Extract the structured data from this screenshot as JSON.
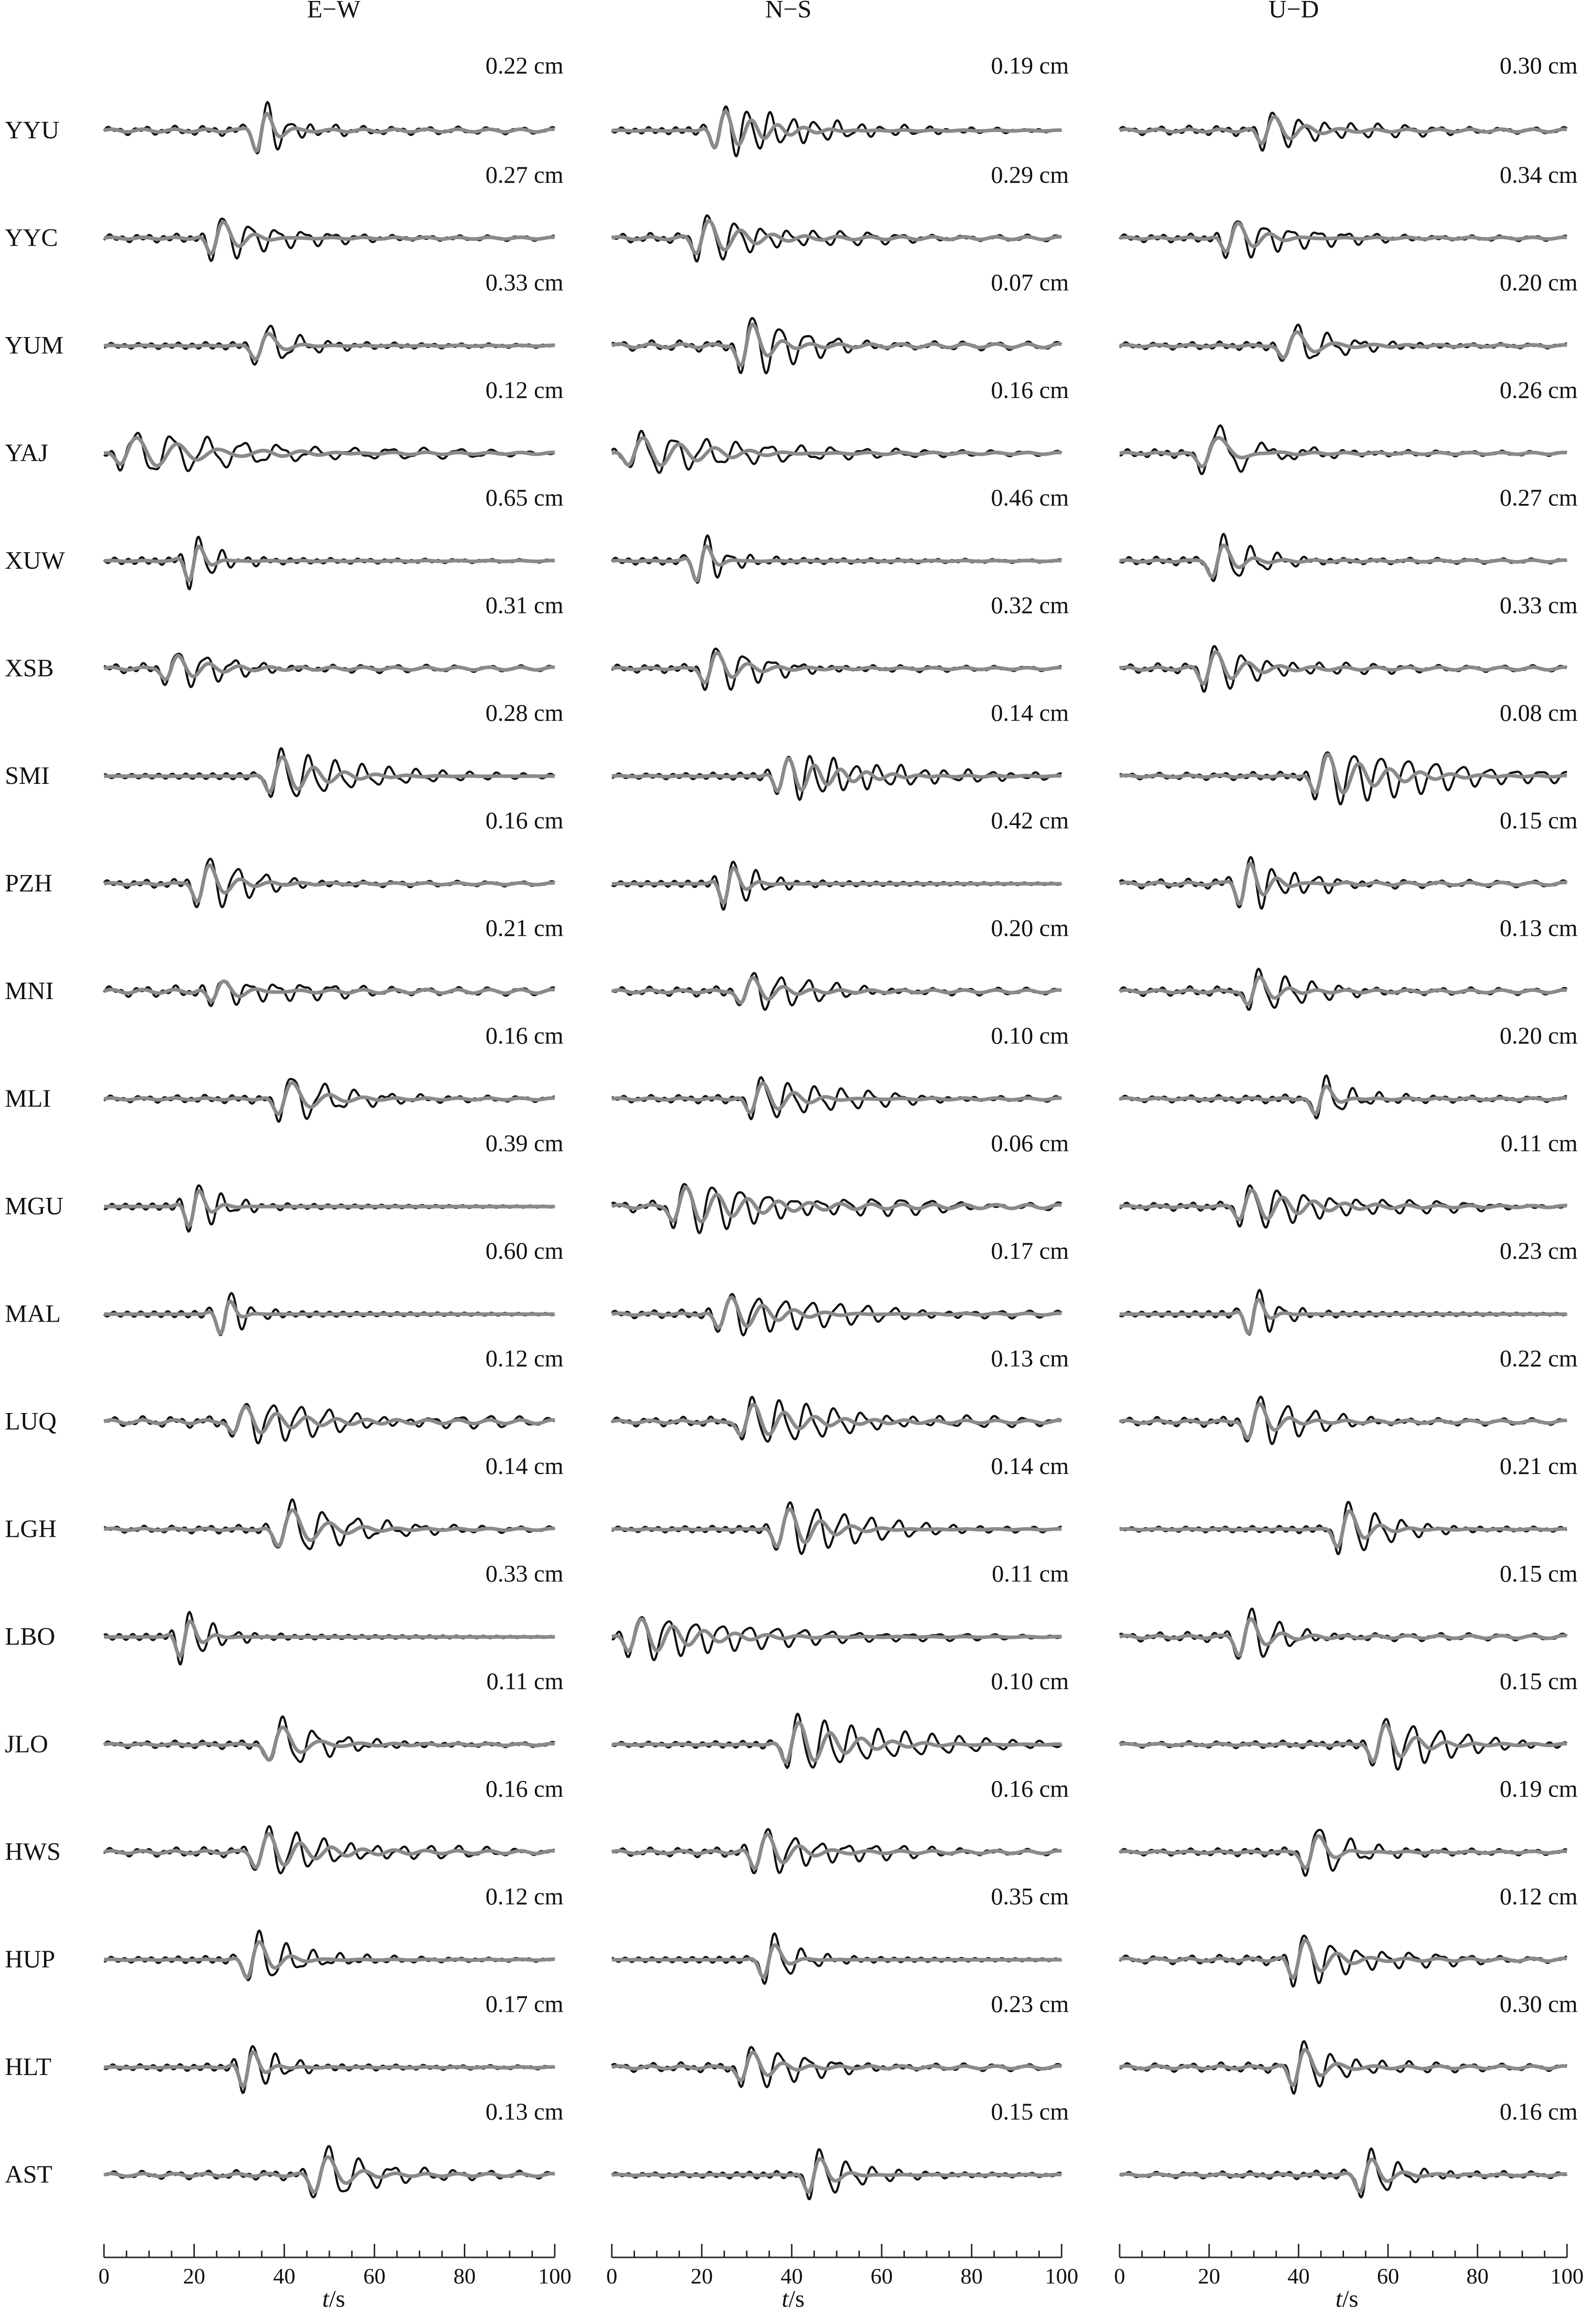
{
  "chart_data": {
    "type": "line",
    "components": [
      "E−W",
      "N−S",
      "U−D"
    ],
    "stations": [
      "YYU",
      "YYC",
      "YUM",
      "YAJ",
      "XUW",
      "XSB",
      "SMI",
      "PZH",
      "MNI",
      "MLI",
      "MGU",
      "MAL",
      "LUQ",
      "LGH",
      "LBO",
      "JLO",
      "HWS",
      "HUP",
      "HLT",
      "AST"
    ],
    "amplitudes": [
      [
        "0.22 cm",
        "0.19 cm",
        "0.30 cm"
      ],
      [
        "0.27 cm",
        "0.29 cm",
        "0.34 cm"
      ],
      [
        "0.33 cm",
        "0.07 cm",
        "0.20 cm"
      ],
      [
        "0.12 cm",
        "0.16 cm",
        "0.26 cm"
      ],
      [
        "0.65 cm",
        "0.46 cm",
        "0.27 cm"
      ],
      [
        "0.31 cm",
        "0.32 cm",
        "0.33 cm"
      ],
      [
        "0.28 cm",
        "0.14 cm",
        "0.08 cm"
      ],
      [
        "0.16 cm",
        "0.42 cm",
        "0.15 cm"
      ],
      [
        "0.21 cm",
        "0.20 cm",
        "0.13 cm"
      ],
      [
        "0.16 cm",
        "0.10 cm",
        "0.20 cm"
      ],
      [
        "0.39 cm",
        "0.06 cm",
        "0.11 cm"
      ],
      [
        "0.60 cm",
        "0.17 cm",
        "0.23 cm"
      ],
      [
        "0.12 cm",
        "0.13 cm",
        "0.22 cm"
      ],
      [
        "0.14 cm",
        "0.14 cm",
        "0.21 cm"
      ],
      [
        "0.33 cm",
        "0.11 cm",
        "0.15 cm"
      ],
      [
        "0.11 cm",
        "0.10 cm",
        "0.15 cm"
      ],
      [
        "0.16 cm",
        "0.16 cm",
        "0.19 cm"
      ],
      [
        "0.12 cm",
        "0.35 cm",
        "0.12 cm"
      ],
      [
        "0.17 cm",
        "0.23 cm",
        "0.30 cm"
      ],
      [
        "0.13 cm",
        "0.15 cm",
        "0.16 cm"
      ]
    ],
    "xlabel_italic": "t",
    "xlabel_unit": "/s",
    "xlim": [
      0,
      100
    ],
    "xticks": [
      0,
      20,
      40,
      60,
      80,
      100
    ],
    "series": [
      {
        "color": "#111111"
      },
      {
        "color": "#8a8a8a"
      }
    ],
    "waveforms": {
      "E−W": [
        {
          "t0": 35,
          "decay": 6,
          "period": 5,
          "amp": 1.0,
          "pre": 0.15
        },
        {
          "t0": 25,
          "decay": 12,
          "period": 6,
          "amp": 0.9,
          "pre": 0.1
        },
        {
          "t0": 35,
          "decay": 7,
          "period": 7,
          "amp": 0.8,
          "pre": 0.05
        },
        {
          "t0": 5,
          "decay": 35,
          "period": 8,
          "amp": 0.7,
          "pre": 0.1
        },
        {
          "t0": 20,
          "decay": 5,
          "period": 5,
          "amp": 1.0,
          "pre": 0.05
        },
        {
          "t0": 15,
          "decay": 14,
          "period": 6,
          "amp": 0.6,
          "pre": 0.15
        },
        {
          "t0": 38,
          "decay": 20,
          "period": 6,
          "amp": 0.9,
          "pre": 0.0
        },
        {
          "t0": 22,
          "decay": 10,
          "period": 6,
          "amp": 1.0,
          "pre": 0.1
        },
        {
          "t0": 25,
          "decay": 14,
          "period": 6,
          "amp": 0.6,
          "pre": 0.2
        },
        {
          "t0": 40,
          "decay": 12,
          "period": 7,
          "amp": 0.9,
          "pre": 0.1
        },
        {
          "t0": 20,
          "decay": 6,
          "period": 5,
          "amp": 1.0,
          "pre": 0.0
        },
        {
          "t0": 27,
          "decay": 4,
          "period": 5,
          "amp": 1.0,
          "pre": 0.0
        },
        {
          "t0": 30,
          "decay": 25,
          "period": 6,
          "amp": 0.7,
          "pre": 0.2
        },
        {
          "t0": 40,
          "decay": 15,
          "period": 7,
          "amp": 1.0,
          "pre": 0.1
        },
        {
          "t0": 18,
          "decay": 6,
          "period": 5,
          "amp": 1.0,
          "pre": 0.0
        },
        {
          "t0": 38,
          "decay": 12,
          "period": 7,
          "amp": 1.0,
          "pre": 0.1
        },
        {
          "t0": 35,
          "decay": 20,
          "period": 6,
          "amp": 0.8,
          "pre": 0.15
        },
        {
          "t0": 33,
          "decay": 10,
          "period": 6,
          "amp": 1.0,
          "pre": 0.05
        },
        {
          "t0": 32,
          "decay": 6,
          "period": 5,
          "amp": 1.0,
          "pre": 0.05
        },
        {
          "t0": 48,
          "decay": 10,
          "period": 7,
          "amp": 1.0,
          "pre": 0.15
        }
      ],
      "N−S": [
        {
          "t0": 24,
          "decay": 20,
          "period": 5,
          "amp": 0.9,
          "pre": 0.05
        },
        {
          "t0": 20,
          "decay": 18,
          "period": 6,
          "amp": 0.8,
          "pre": 0.15
        },
        {
          "t0": 30,
          "decay": 10,
          "period": 6,
          "amp": 1.2,
          "pre": 0.2
        },
        {
          "t0": 5,
          "decay": 30,
          "period": 7,
          "amp": 0.7,
          "pre": 0.1
        },
        {
          "t0": 20,
          "decay": 5,
          "period": 5,
          "amp": 1.0,
          "pre": 0.05
        },
        {
          "t0": 22,
          "decay": 12,
          "period": 6,
          "amp": 0.8,
          "pre": 0.1
        },
        {
          "t0": 38,
          "decay": 25,
          "period": 5,
          "amp": 0.8,
          "pre": 0.05
        },
        {
          "t0": 26,
          "decay": 6,
          "period": 5,
          "amp": 1.0,
          "pre": 0.0
        },
        {
          "t0": 30,
          "decay": 14,
          "period": 6,
          "amp": 0.7,
          "pre": 0.15
        },
        {
          "t0": 32,
          "decay": 18,
          "period": 6,
          "amp": 0.8,
          "pre": 0.1
        },
        {
          "t0": 15,
          "decay": 30,
          "period": 6,
          "amp": 0.8,
          "pre": 0.2
        },
        {
          "t0": 25,
          "decay": 25,
          "period": 6,
          "amp": 0.8,
          "pre": 0.1
        },
        {
          "t0": 30,
          "decay": 25,
          "period": 6,
          "amp": 0.8,
          "pre": 0.15
        },
        {
          "t0": 38,
          "decay": 18,
          "period": 6,
          "amp": 1.0,
          "pre": 0.05
        },
        {
          "t0": 5,
          "decay": 30,
          "period": 6,
          "amp": 0.8,
          "pre": 0.05
        },
        {
          "t0": 40,
          "decay": 25,
          "period": 6,
          "amp": 1.0,
          "pre": 0.05
        },
        {
          "t0": 33,
          "decay": 15,
          "period": 6,
          "amp": 0.9,
          "pre": 0.15
        },
        {
          "t0": 35,
          "decay": 6,
          "period": 6,
          "amp": 1.0,
          "pre": 0.0
        },
        {
          "t0": 30,
          "decay": 12,
          "period": 6,
          "amp": 0.8,
          "pre": 0.15
        },
        {
          "t0": 45,
          "decay": 8,
          "period": 6,
          "amp": 1.0,
          "pre": 0.05
        }
      ],
      "U−D": [
        {
          "t0": 33,
          "decay": 15,
          "period": 6,
          "amp": 0.7,
          "pre": 0.15
        },
        {
          "t0": 25,
          "decay": 14,
          "period": 6,
          "amp": 0.8,
          "pre": 0.1
        },
        {
          "t0": 38,
          "decay": 12,
          "period": 7,
          "amp": 0.8,
          "pre": 0.1
        },
        {
          "t0": 20,
          "decay": 10,
          "period": 10,
          "amp": 1.0,
          "pre": 0.1
        },
        {
          "t0": 22,
          "decay": 8,
          "period": 6,
          "amp": 0.9,
          "pre": 0.1
        },
        {
          "t0": 20,
          "decay": 14,
          "period": 6,
          "amp": 0.8,
          "pre": 0.15
        },
        {
          "t0": 45,
          "decay": 30,
          "period": 6,
          "amp": 1.0,
          "pre": 0.1
        },
        {
          "t0": 28,
          "decay": 10,
          "period": 5,
          "amp": 1.0,
          "pre": 0.15
        },
        {
          "t0": 30,
          "decay": 10,
          "period": 6,
          "amp": 0.8,
          "pre": 0.15
        },
        {
          "t0": 45,
          "decay": 6,
          "period": 6,
          "amp": 0.9,
          "pre": 0.1
        },
        {
          "t0": 28,
          "decay": 25,
          "period": 6,
          "amp": 0.7,
          "pre": 0.1
        },
        {
          "t0": 30,
          "decay": 5,
          "period": 5,
          "amp": 1.0,
          "pre": 0.0
        },
        {
          "t0": 30,
          "decay": 10,
          "period": 6,
          "amp": 1.0,
          "pre": 0.15
        },
        {
          "t0": 50,
          "decay": 10,
          "period": 6,
          "amp": 1.0,
          "pre": 0.05
        },
        {
          "t0": 28,
          "decay": 8,
          "period": 6,
          "amp": 1.0,
          "pre": 0.15
        },
        {
          "t0": 58,
          "decay": 15,
          "period": 6,
          "amp": 1.0,
          "pre": 0.1
        },
        {
          "t0": 43,
          "decay": 8,
          "period": 7,
          "amp": 1.0,
          "pre": 0.1
        },
        {
          "t0": 40,
          "decay": 14,
          "period": 6,
          "amp": 1.0,
          "pre": 0.15
        },
        {
          "t0": 40,
          "decay": 10,
          "period": 6,
          "amp": 1.0,
          "pre": 0.15
        },
        {
          "t0": 55,
          "decay": 8,
          "period": 6,
          "amp": 0.9,
          "pre": 0.1
        }
      ]
    }
  }
}
